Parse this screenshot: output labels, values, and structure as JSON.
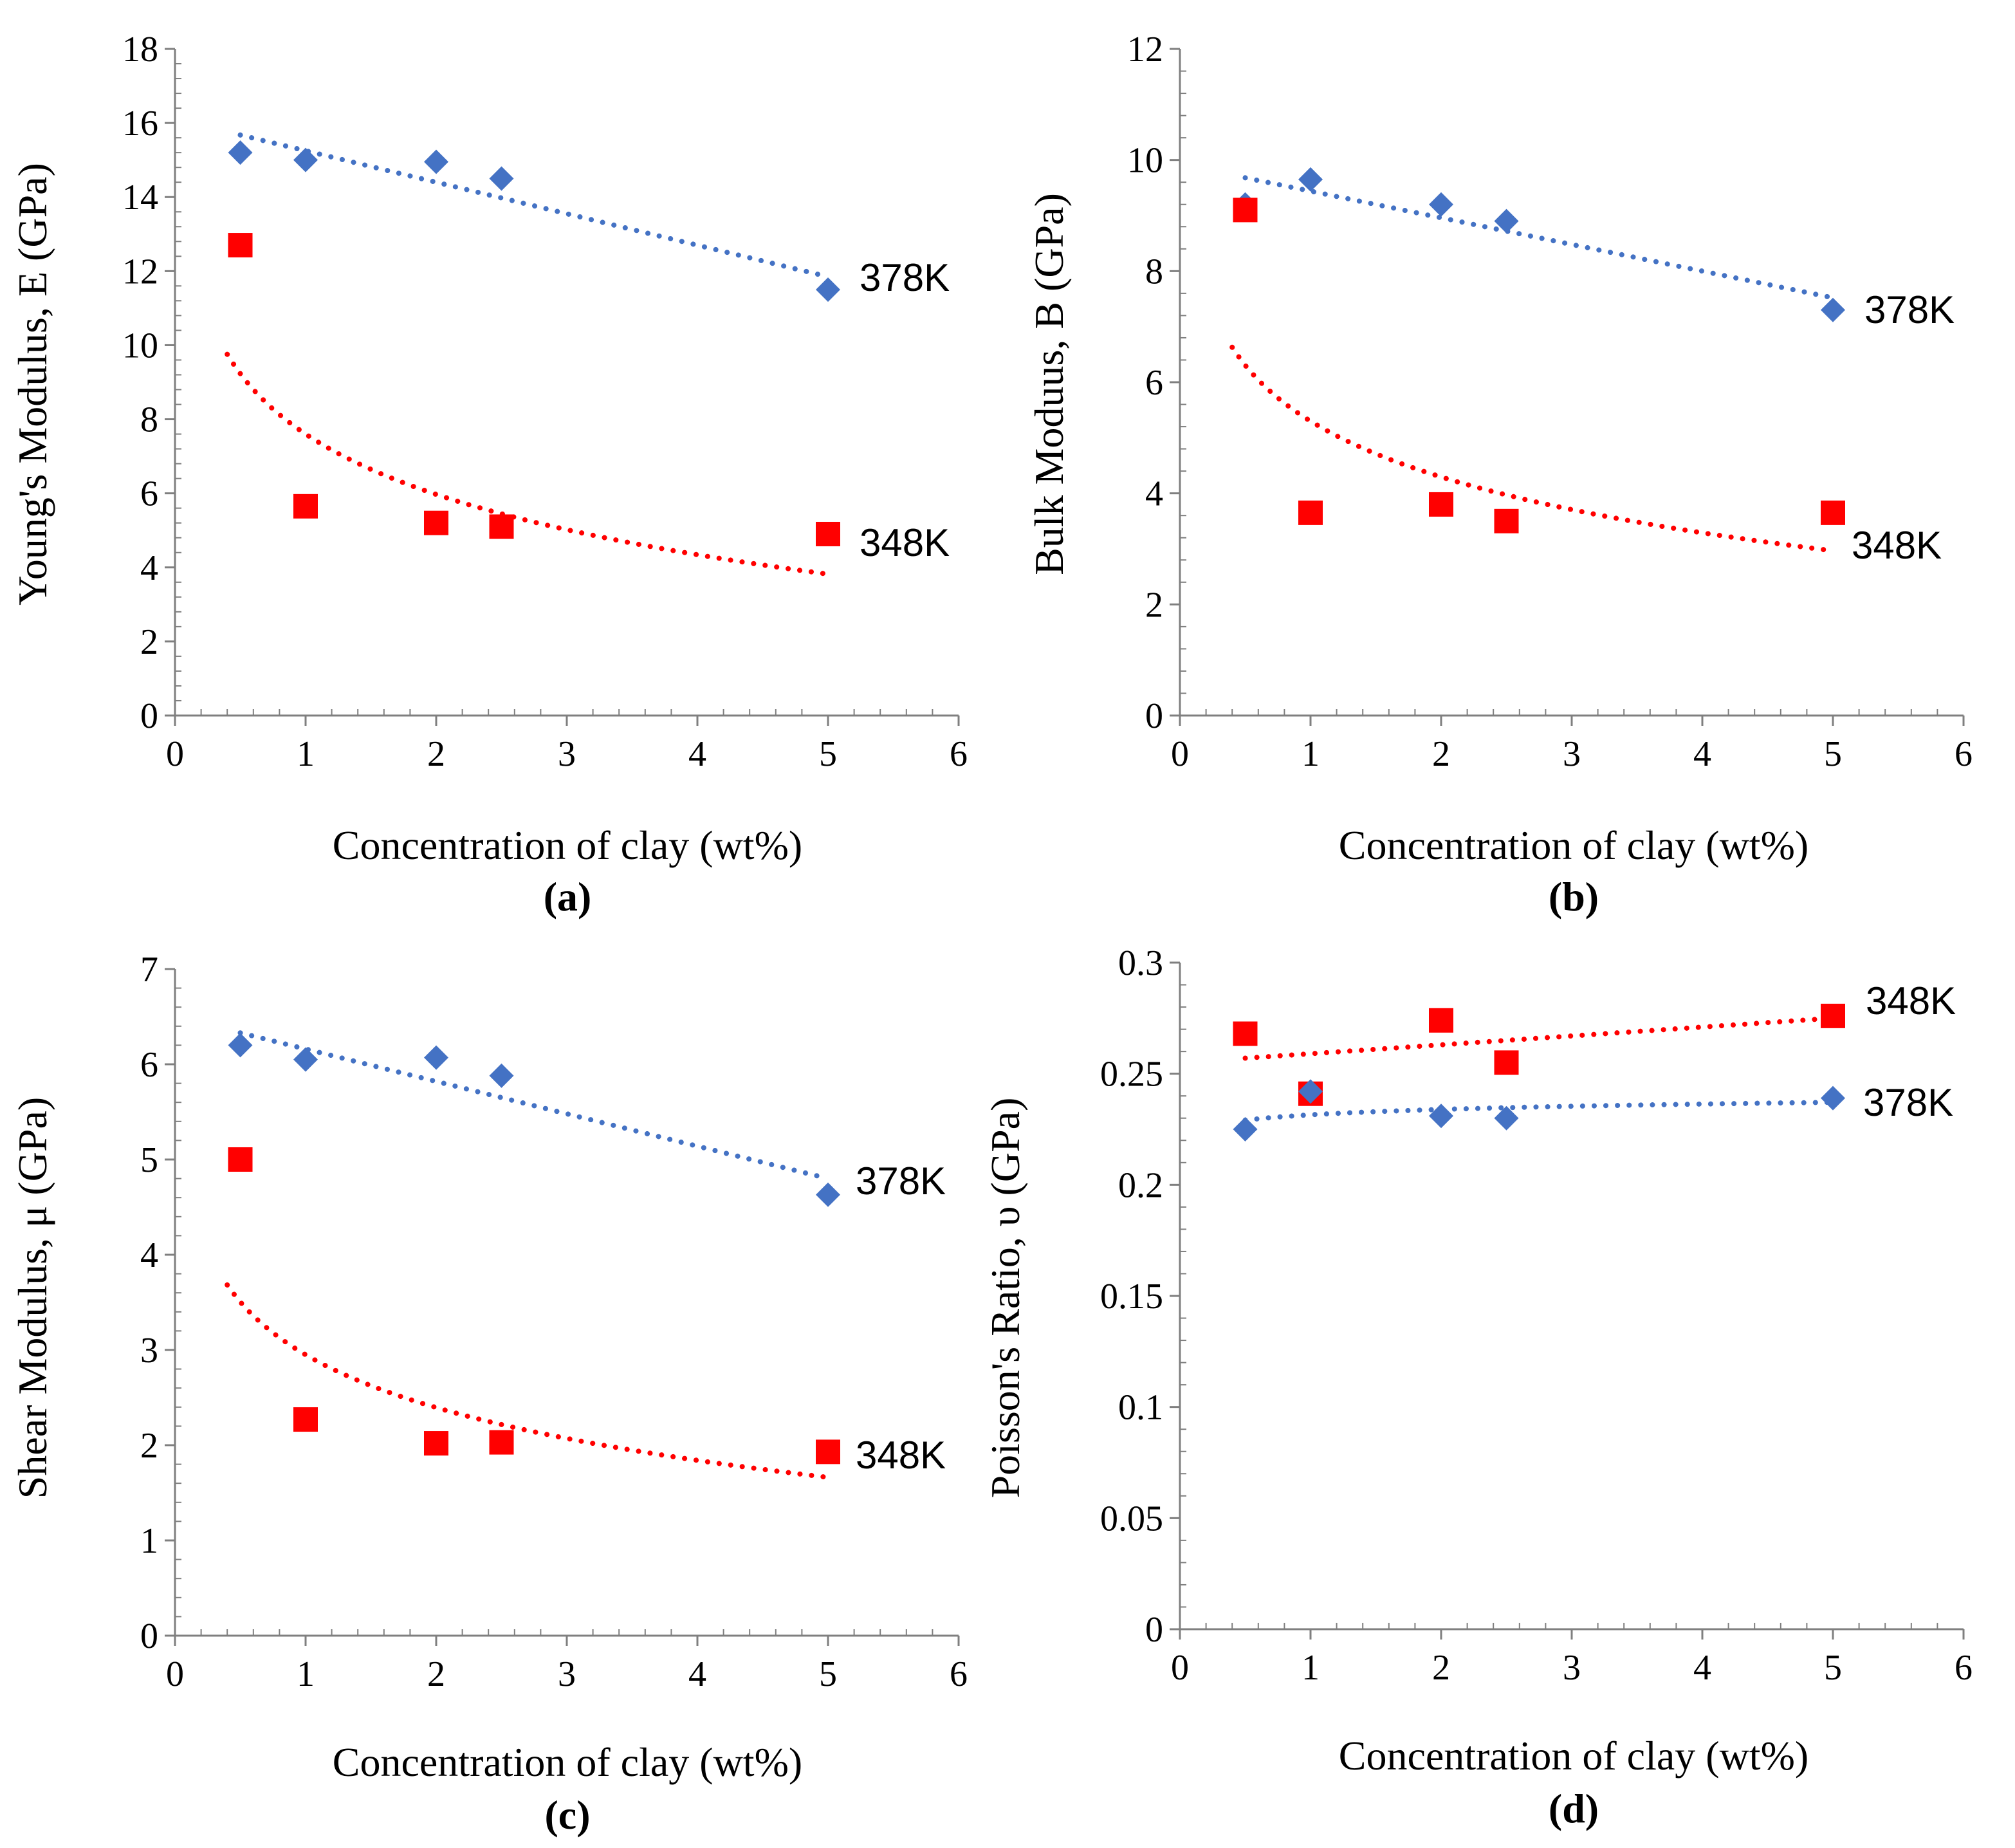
{
  "colors": {
    "series_378K": "#4472C4",
    "series_348K": "#FF0000",
    "axis": "#7F7F7F"
  },
  "chart_data": [
    {
      "type": "scatter",
      "panel_label": "(a)",
      "xlabel": "Concentration of clay (wt%)",
      "ylabel": "Young's Modulus, E (GPa)",
      "xlim": [
        0,
        6
      ],
      "ylim": [
        0,
        18
      ],
      "xticks": [
        "0",
        "1",
        "2",
        "3",
        "4",
        "5",
        "6"
      ],
      "yticks": [
        "0",
        "2",
        "4",
        "6",
        "8",
        "10",
        "12",
        "14",
        "16",
        "18"
      ],
      "series": [
        {
          "name": "378K",
          "marker": "diamond",
          "x": [
            0.5,
            1,
            2,
            2.5,
            5
          ],
          "y": [
            15.2,
            15.0,
            14.95,
            14.5,
            11.5
          ],
          "trendline": {
            "type": "linear",
            "a": 16.1,
            "b": -0.85,
            "x_range": [
              0.5,
              5
            ]
          }
        },
        {
          "name": "348K",
          "marker": "square",
          "x": [
            0.5,
            1,
            2,
            2.5,
            5
          ],
          "y": [
            12.7,
            5.65,
            5.2,
            5.1,
            4.9
          ],
          "trendline": {
            "type": "log",
            "a": 7.6,
            "b": -2.35,
            "x_range": [
              0.4,
              5
            ]
          }
        }
      ]
    },
    {
      "type": "scatter",
      "panel_label": "(b)",
      "xlabel": "Concentration of clay (wt%)",
      "ylabel": "Bulk Moduus, B (GPa)",
      "xlim": [
        0,
        6
      ],
      "ylim": [
        0,
        12
      ],
      "xticks": [
        "0",
        "1",
        "2",
        "3",
        "4",
        "5",
        "6"
      ],
      "yticks": [
        "0",
        "2",
        "4",
        "6",
        "8",
        "10",
        "12"
      ],
      "series": [
        {
          "name": "378K",
          "marker": "diamond",
          "x": [
            0.5,
            1,
            2,
            2.5,
            5
          ],
          "y": [
            9.2,
            9.65,
            9.2,
            8.9,
            7.3
          ],
          "trendline": {
            "type": "linear",
            "a": 9.92,
            "b": -0.48,
            "x_range": [
              0.5,
              5
            ]
          }
        },
        {
          "name": "348K",
          "marker": "square",
          "x": [
            0.5,
            1,
            2,
            2.5,
            5
          ],
          "y": [
            9.1,
            3.65,
            3.8,
            3.5,
            3.65
          ],
          "trendline": {
            "type": "log",
            "a": 5.3,
            "b": -1.45,
            "x_range": [
              0.4,
              5
            ]
          }
        }
      ]
    },
    {
      "type": "scatter",
      "panel_label": "(c)",
      "xlabel": "Concentration of clay (wt%)",
      "ylabel": "Shear Modulus, μ (GPa)",
      "xlim": [
        0,
        6
      ],
      "ylim": [
        0,
        7
      ],
      "xticks": [
        "0",
        "1",
        "2",
        "3",
        "4",
        "5",
        "6"
      ],
      "yticks": [
        "0",
        "1",
        "2",
        "3",
        "4",
        "5",
        "6",
        "7"
      ],
      "series": [
        {
          "name": "378K",
          "marker": "diamond",
          "x": [
            0.5,
            1,
            2,
            2.5,
            5
          ],
          "y": [
            6.2,
            6.05,
            6.07,
            5.88,
            4.63
          ],
          "trendline": {
            "type": "linear",
            "a": 6.5,
            "b": -0.34,
            "x_range": [
              0.5,
              5
            ]
          }
        },
        {
          "name": "348K",
          "marker": "square",
          "x": [
            0.5,
            1,
            2,
            2.5,
            5
          ],
          "y": [
            5.0,
            2.27,
            2.02,
            2.03,
            1.93
          ],
          "trendline": {
            "type": "log",
            "a": 2.95,
            "b": -0.8,
            "x_range": [
              0.4,
              5
            ]
          }
        }
      ]
    },
    {
      "type": "scatter",
      "panel_label": "(d)",
      "xlabel": "Concentration of clay (wt%)",
      "ylabel": "Poisson's Ratio, υ (GPa)",
      "xlim": [
        0,
        6
      ],
      "ylim": [
        0,
        0.3
      ],
      "xticks": [
        "0",
        "1",
        "2",
        "3",
        "4",
        "5",
        "6"
      ],
      "yticks": [
        "0",
        "0.05",
        "0.1",
        "0.15",
        "0.2",
        "0.25",
        "0.3"
      ],
      "series": [
        {
          "name": "348K",
          "marker": "square",
          "x": [
            0.5,
            1,
            2,
            2.5,
            5
          ],
          "y": [
            0.268,
            0.241,
            0.274,
            0.255,
            0.276
          ],
          "trendline": {
            "type": "linear",
            "a": 0.255,
            "b": 0.004,
            "x_range": [
              0.5,
              5
            ]
          }
        },
        {
          "name": "378K",
          "marker": "diamond",
          "x": [
            0.5,
            1,
            2,
            2.5,
            5
          ],
          "y": [
            0.225,
            0.242,
            0.231,
            0.23,
            0.239
          ],
          "trendline": {
            "type": "log",
            "a": 0.2315,
            "b": 0.0035,
            "x_range": [
              0.5,
              5
            ]
          }
        }
      ]
    }
  ]
}
